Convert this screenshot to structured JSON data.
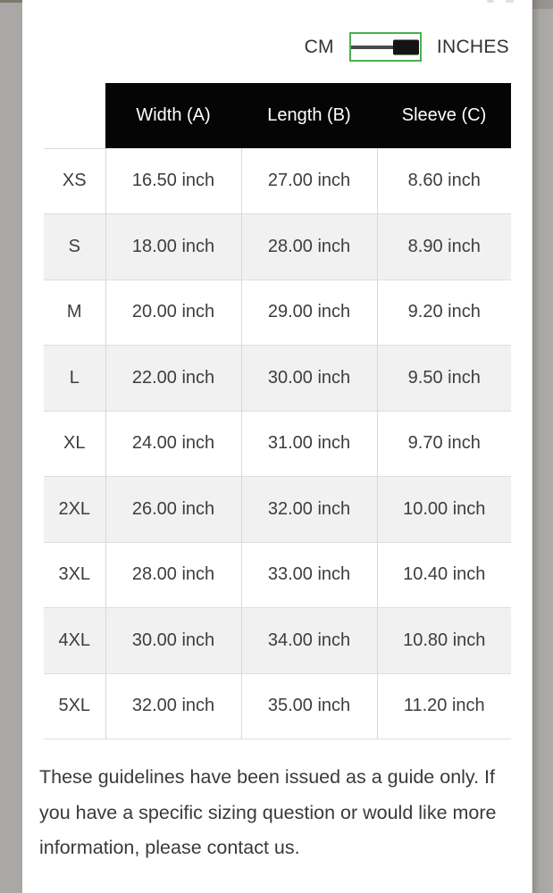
{
  "unit_toggle": {
    "left_label": "CM",
    "right_label": "INCHES",
    "selected": "INCHES",
    "accent_color": "#4caf50"
  },
  "size_table": {
    "columns": [
      "Width (A)",
      "Length (B)",
      "Sleeve (C)"
    ],
    "rows": [
      {
        "size": "XS",
        "width": "16.50 inch",
        "length": "27.00 inch",
        "sleeve": "8.60 inch"
      },
      {
        "size": "S",
        "width": "18.00 inch",
        "length": "28.00 inch",
        "sleeve": "8.90 inch"
      },
      {
        "size": "M",
        "width": "20.00 inch",
        "length": "29.00 inch",
        "sleeve": "9.20 inch"
      },
      {
        "size": "L",
        "width": "22.00 inch",
        "length": "30.00 inch",
        "sleeve": "9.50 inch"
      },
      {
        "size": "XL",
        "width": "24.00 inch",
        "length": "31.00 inch",
        "sleeve": "9.70 inch"
      },
      {
        "size": "2XL",
        "width": "26.00 inch",
        "length": "32.00 inch",
        "sleeve": "10.00 inch"
      },
      {
        "size": "3XL",
        "width": "28.00 inch",
        "length": "33.00 inch",
        "sleeve": "10.40 inch"
      },
      {
        "size": "4XL",
        "width": "30.00 inch",
        "length": "34.00 inch",
        "sleeve": "10.80 inch"
      },
      {
        "size": "5XL",
        "width": "32.00 inch",
        "length": "35.00 inch",
        "sleeve": "11.20 inch"
      }
    ]
  },
  "footer": {
    "note": "These guidelines have been issued as a guide only. If you have a specific sizing question or would like more information, please contact us."
  },
  "colors": {
    "header_bg": "#050505",
    "header_text": "#ffffff",
    "alt_row_bg": "#f1f1f1",
    "border": "#d8d8d8",
    "toggle_green": "#4caf50",
    "gutter_gray": "#a9a8a6"
  }
}
